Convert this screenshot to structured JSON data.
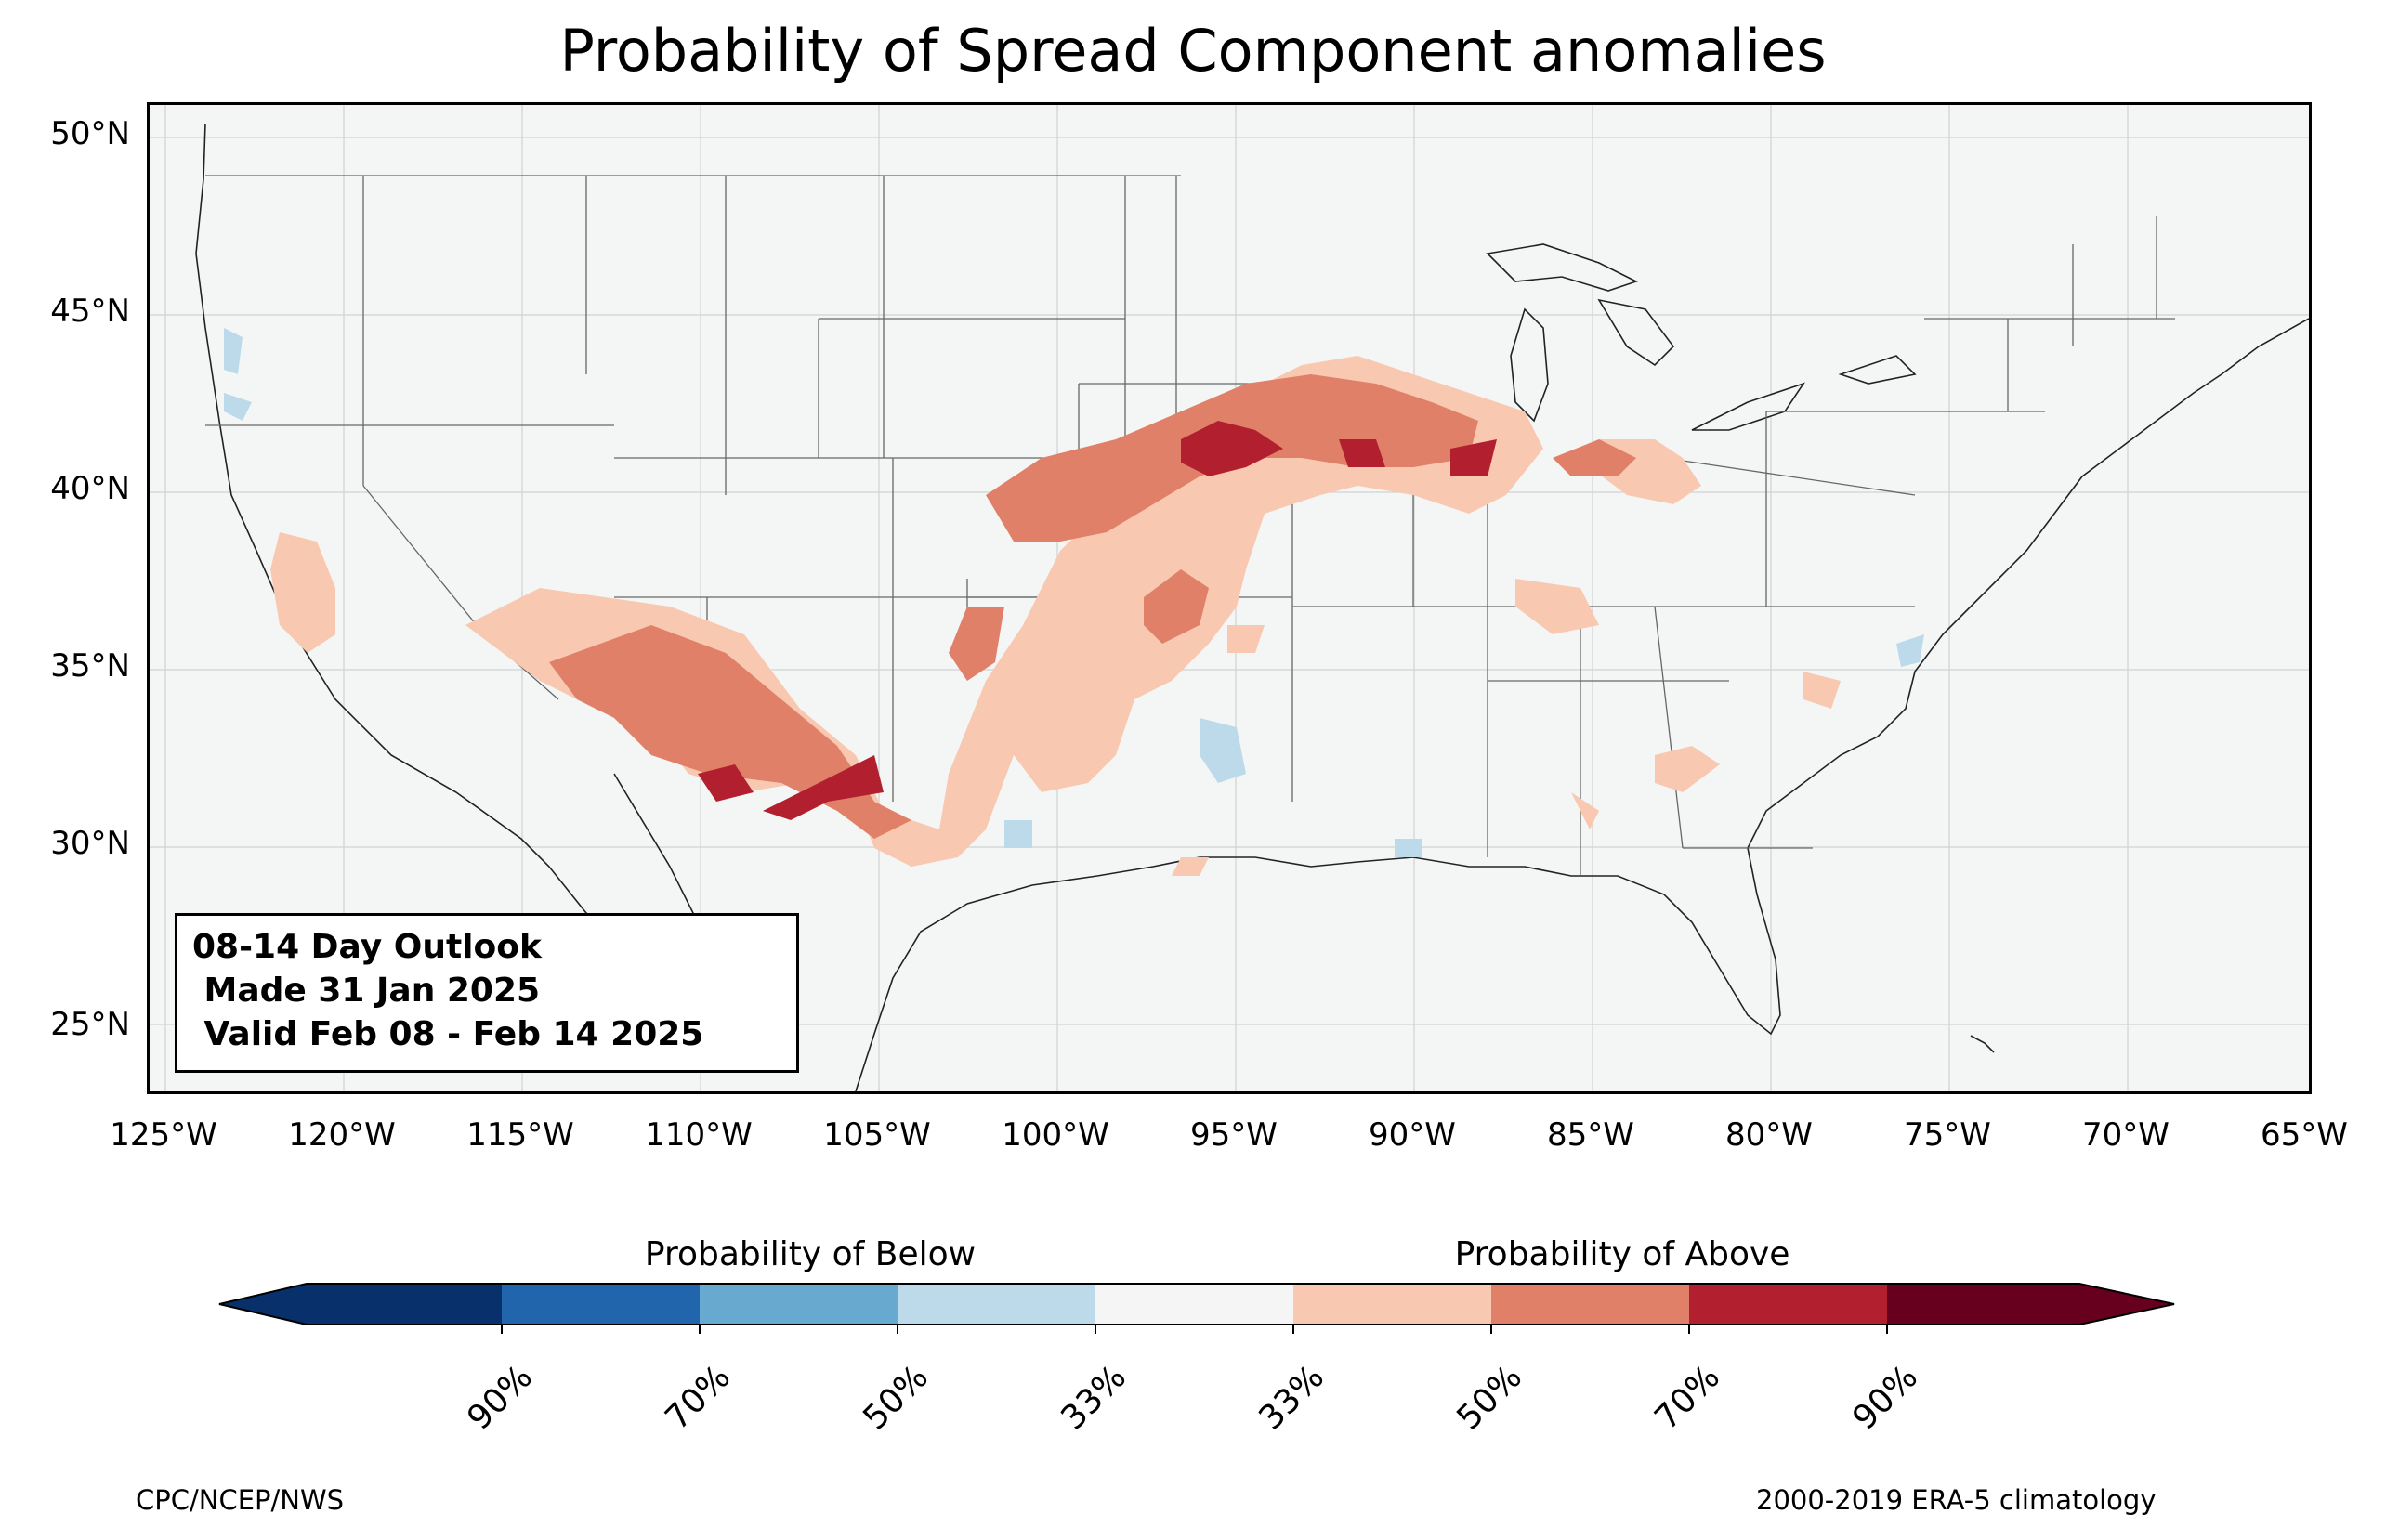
{
  "title": "Probability of Spread Component anomalies",
  "map": {
    "extent": {
      "lon_min": -125.5,
      "lon_max": -65,
      "lat_min": 23,
      "lat_max": 51
    },
    "lat_labels": [
      "50°N",
      "45°N",
      "40°N",
      "35°N",
      "30°N",
      "25°N"
    ],
    "lat_values": [
      50,
      45,
      40,
      35,
      30,
      25
    ],
    "lon_labels": [
      "125°W",
      "120°W",
      "115°W",
      "110°W",
      "105°W",
      "100°W",
      "95°W",
      "90°W",
      "85°W",
      "80°W",
      "75°W",
      "70°W",
      "65°W"
    ],
    "lon_values": [
      -125,
      -120,
      -115,
      -110,
      -105,
      -100,
      -95,
      -90,
      -85,
      -80,
      -75,
      -70,
      -65
    ]
  },
  "infobox": {
    "line1": "08-14 Day Outlook",
    "line2": " Made 31 Jan 2025",
    "line3": " Valid Feb 08 - Feb 14 2025"
  },
  "colorbar": {
    "below_title": "Probability of Below",
    "above_title": "Probability of Above",
    "colors": [
      "#08306b",
      "#2166ac",
      "#67a9cf",
      "#bcdaea",
      "#f5f5f5",
      "#f9c8b0",
      "#e08068",
      "#b2202f",
      "#67001f"
    ],
    "tick_labels": [
      "90%",
      "70%",
      "50%",
      "33%",
      "33%",
      "50%",
      "70%",
      "90%"
    ]
  },
  "footer": {
    "left": "CPC/NCEP/NWS",
    "right": "2000-2019 ERA-5 climatology"
  },
  "legend_colors": {
    "ocean_background": "#f4f6f6",
    "above_33": "#f9c8b0",
    "above_50": "#e08068",
    "above_70": "#b2202f",
    "below_33": "#bcdaea"
  }
}
